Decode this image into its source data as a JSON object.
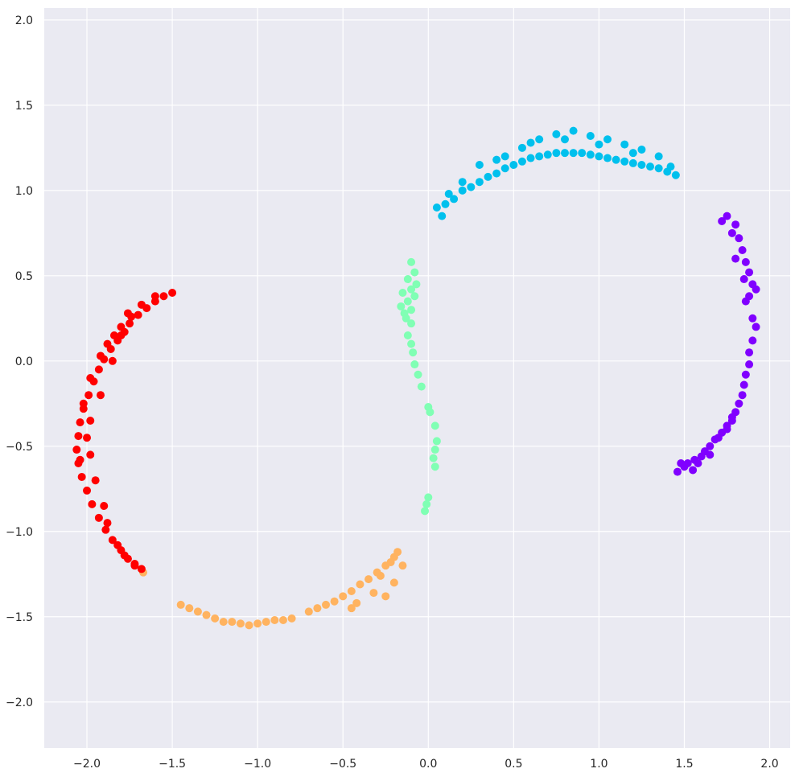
{
  "chart_data": {
    "type": "scatter",
    "title": "",
    "xlabel": "",
    "ylabel": "",
    "xlim": [
      -2.25,
      2.12
    ],
    "ylim": [
      -2.27,
      2.07
    ],
    "xticks": [
      -2.0,
      -1.5,
      -1.0,
      -0.5,
      0.0,
      0.5,
      1.0,
      1.5,
      2.0
    ],
    "yticks": [
      -2.0,
      -1.5,
      -1.0,
      -0.5,
      0.0,
      0.5,
      1.0,
      1.5,
      2.0
    ],
    "xtick_labels": [
      "−2.0",
      "−1.5",
      "−1.0",
      "−0.5",
      "0.0",
      "0.5",
      "1.0",
      "1.5",
      "2.0"
    ],
    "ytick_labels": [
      "−2.0",
      "−1.5",
      "−1.0",
      "−0.5",
      "0.0",
      "0.5",
      "1.0",
      "1.5",
      "2.0"
    ],
    "grid": true,
    "background_color": "#eaeaf2",
    "grid_color": "#ffffff",
    "legend": "none",
    "series": [
      {
        "color": "#8000ff",
        "points": [
          [
            1.75,
            0.85
          ],
          [
            1.8,
            0.8
          ],
          [
            1.72,
            0.82
          ],
          [
            1.78,
            0.75
          ],
          [
            1.82,
            0.72
          ],
          [
            1.84,
            0.65
          ],
          [
            1.8,
            0.6
          ],
          [
            1.86,
            0.58
          ],
          [
            1.88,
            0.52
          ],
          [
            1.85,
            0.48
          ],
          [
            1.9,
            0.45
          ],
          [
            1.92,
            0.42
          ],
          [
            1.88,
            0.38
          ],
          [
            1.86,
            0.35
          ],
          [
            1.9,
            0.25
          ],
          [
            1.92,
            0.2
          ],
          [
            1.9,
            0.12
          ],
          [
            1.88,
            0.05
          ],
          [
            1.88,
            -0.02
          ],
          [
            1.86,
            -0.08
          ],
          [
            1.85,
            -0.14
          ],
          [
            1.84,
            -0.2
          ],
          [
            1.82,
            -0.25
          ],
          [
            1.8,
            -0.3
          ],
          [
            1.78,
            -0.35
          ],
          [
            1.75,
            -0.38
          ],
          [
            1.72,
            -0.42
          ],
          [
            1.68,
            -0.46
          ],
          [
            1.65,
            -0.5
          ],
          [
            1.62,
            -0.53
          ],
          [
            1.6,
            -0.56
          ],
          [
            1.56,
            -0.58
          ],
          [
            1.52,
            -0.6
          ],
          [
            1.5,
            -0.62
          ],
          [
            1.46,
            -0.65
          ],
          [
            1.48,
            -0.6
          ],
          [
            1.55,
            -0.64
          ],
          [
            1.58,
            -0.6
          ],
          [
            1.65,
            -0.55
          ],
          [
            1.7,
            -0.45
          ],
          [
            1.75,
            -0.4
          ],
          [
            1.78,
            -0.33
          ]
        ]
      },
      {
        "color": "#00c0ed",
        "points": [
          [
            0.05,
            0.9
          ],
          [
            0.08,
            0.85
          ],
          [
            0.1,
            0.92
          ],
          [
            0.15,
            0.95
          ],
          [
            0.2,
            1.0
          ],
          [
            0.25,
            1.02
          ],
          [
            0.3,
            1.05
          ],
          [
            0.35,
            1.08
          ],
          [
            0.4,
            1.1
          ],
          [
            0.45,
            1.13
          ],
          [
            0.5,
            1.15
          ],
          [
            0.55,
            1.17
          ],
          [
            0.6,
            1.19
          ],
          [
            0.65,
            1.2
          ],
          [
            0.7,
            1.21
          ],
          [
            0.75,
            1.22
          ],
          [
            0.8,
            1.22
          ],
          [
            0.85,
            1.22
          ],
          [
            0.9,
            1.22
          ],
          [
            0.95,
            1.21
          ],
          [
            1.0,
            1.2
          ],
          [
            1.05,
            1.19
          ],
          [
            1.1,
            1.18
          ],
          [
            1.15,
            1.17
          ],
          [
            1.2,
            1.16
          ],
          [
            1.25,
            1.15
          ],
          [
            1.3,
            1.14
          ],
          [
            1.35,
            1.13
          ],
          [
            1.4,
            1.11
          ],
          [
            1.45,
            1.09
          ],
          [
            1.42,
            1.14
          ],
          [
            0.2,
            1.05
          ],
          [
            0.3,
            1.15
          ],
          [
            0.45,
            1.2
          ],
          [
            0.55,
            1.25
          ],
          [
            0.65,
            1.3
          ],
          [
            0.75,
            1.33
          ],
          [
            0.85,
            1.35
          ],
          [
            0.95,
            1.32
          ],
          [
            1.05,
            1.3
          ],
          [
            1.15,
            1.27
          ],
          [
            1.25,
            1.24
          ],
          [
            1.35,
            1.2
          ],
          [
            0.12,
            0.98
          ],
          [
            0.4,
            1.18
          ],
          [
            0.6,
            1.28
          ],
          [
            0.8,
            1.3
          ],
          [
            1.0,
            1.27
          ],
          [
            1.2,
            1.22
          ]
        ]
      },
      {
        "color": "#80ffb4",
        "points": [
          [
            -0.1,
            0.58
          ],
          [
            -0.08,
            0.52
          ],
          [
            -0.12,
            0.48
          ],
          [
            -0.1,
            0.42
          ],
          [
            -0.08,
            0.38
          ],
          [
            -0.12,
            0.35
          ],
          [
            -0.1,
            0.3
          ],
          [
            -0.14,
            0.28
          ],
          [
            -0.1,
            0.22
          ],
          [
            -0.12,
            0.15
          ],
          [
            -0.1,
            0.1
          ],
          [
            -0.09,
            0.05
          ],
          [
            -0.08,
            -0.02
          ],
          [
            -0.06,
            -0.08
          ],
          [
            -0.04,
            -0.15
          ],
          [
            -0.15,
            0.4
          ],
          [
            -0.16,
            0.32
          ],
          [
            -0.13,
            0.25
          ],
          [
            -0.07,
            0.45
          ],
          [
            0.0,
            -0.27
          ],
          [
            0.01,
            -0.3
          ],
          [
            0.04,
            -0.38
          ],
          [
            0.05,
            -0.47
          ],
          [
            0.04,
            -0.52
          ],
          [
            0.03,
            -0.57
          ],
          [
            0.04,
            -0.62
          ],
          [
            0.0,
            -0.8
          ],
          [
            -0.01,
            -0.84
          ],
          [
            -0.02,
            -0.88
          ]
        ]
      },
      {
        "color": "#ffb360",
        "points": [
          [
            -1.67,
            -1.24
          ],
          [
            -1.45,
            -1.43
          ],
          [
            -1.4,
            -1.45
          ],
          [
            -1.35,
            -1.47
          ],
          [
            -1.3,
            -1.49
          ],
          [
            -1.25,
            -1.51
          ],
          [
            -1.2,
            -1.53
          ],
          [
            -1.15,
            -1.53
          ],
          [
            -1.1,
            -1.54
          ],
          [
            -1.05,
            -1.55
          ],
          [
            -1.0,
            -1.54
          ],
          [
            -0.95,
            -1.53
          ],
          [
            -0.9,
            -1.52
          ],
          [
            -0.85,
            -1.52
          ],
          [
            -0.8,
            -1.51
          ],
          [
            -0.7,
            -1.47
          ],
          [
            -0.65,
            -1.45
          ],
          [
            -0.6,
            -1.43
          ],
          [
            -0.55,
            -1.41
          ],
          [
            -0.5,
            -1.38
          ],
          [
            -0.45,
            -1.35
          ],
          [
            -0.4,
            -1.31
          ],
          [
            -0.35,
            -1.28
          ],
          [
            -0.3,
            -1.24
          ],
          [
            -0.25,
            -1.2
          ],
          [
            -0.2,
            -1.15
          ],
          [
            -0.18,
            -1.12
          ],
          [
            -0.22,
            -1.18
          ],
          [
            -0.28,
            -1.26
          ],
          [
            -0.32,
            -1.36
          ],
          [
            -0.25,
            -1.38
          ],
          [
            -0.45,
            -1.45
          ],
          [
            -0.42,
            -1.42
          ],
          [
            -0.2,
            -1.3
          ],
          [
            -0.15,
            -1.2
          ]
        ]
      },
      {
        "color": "#ff0000",
        "points": [
          [
            -1.5,
            0.4
          ],
          [
            -1.55,
            0.38
          ],
          [
            -1.6,
            0.35
          ],
          [
            -1.65,
            0.31
          ],
          [
            -1.7,
            0.27
          ],
          [
            -1.75,
            0.22
          ],
          [
            -1.78,
            0.17
          ],
          [
            -1.82,
            0.12
          ],
          [
            -1.86,
            0.07
          ],
          [
            -1.9,
            0.01
          ],
          [
            -1.93,
            -0.05
          ],
          [
            -1.96,
            -0.12
          ],
          [
            -1.99,
            -0.2
          ],
          [
            -2.02,
            -0.28
          ],
          [
            -2.04,
            -0.36
          ],
          [
            -2.05,
            -0.44
          ],
          [
            -2.06,
            -0.52
          ],
          [
            -2.05,
            -0.6
          ],
          [
            -2.03,
            -0.68
          ],
          [
            -2.0,
            -0.76
          ],
          [
            -1.97,
            -0.84
          ],
          [
            -1.93,
            -0.92
          ],
          [
            -1.89,
            -0.99
          ],
          [
            -1.85,
            -1.05
          ],
          [
            -1.8,
            -1.11
          ],
          [
            -1.76,
            -1.16
          ],
          [
            -1.72,
            -1.2
          ],
          [
            -1.68,
            -1.22
          ],
          [
            -1.6,
            0.38
          ],
          [
            -1.68,
            0.33
          ],
          [
            -1.74,
            0.26
          ],
          [
            -1.8,
            0.2
          ],
          [
            -1.84,
            0.15
          ],
          [
            -1.88,
            0.1
          ],
          [
            -1.92,
            0.03
          ],
          [
            -1.98,
            -0.1
          ],
          [
            -2.02,
            -0.25
          ],
          [
            -2.0,
            -0.45
          ],
          [
            -1.98,
            -0.55
          ],
          [
            -1.95,
            -0.7
          ],
          [
            -1.9,
            -0.85
          ],
          [
            -1.88,
            -0.95
          ],
          [
            -1.82,
            -1.08
          ],
          [
            -1.78,
            -1.14
          ],
          [
            -1.72,
            -1.19
          ],
          [
            -1.76,
            0.28
          ],
          [
            -1.8,
            0.15
          ],
          [
            -1.85,
            0.0
          ],
          [
            -1.92,
            -0.2
          ],
          [
            -1.98,
            -0.35
          ],
          [
            -2.04,
            -0.58
          ]
        ]
      }
    ]
  }
}
